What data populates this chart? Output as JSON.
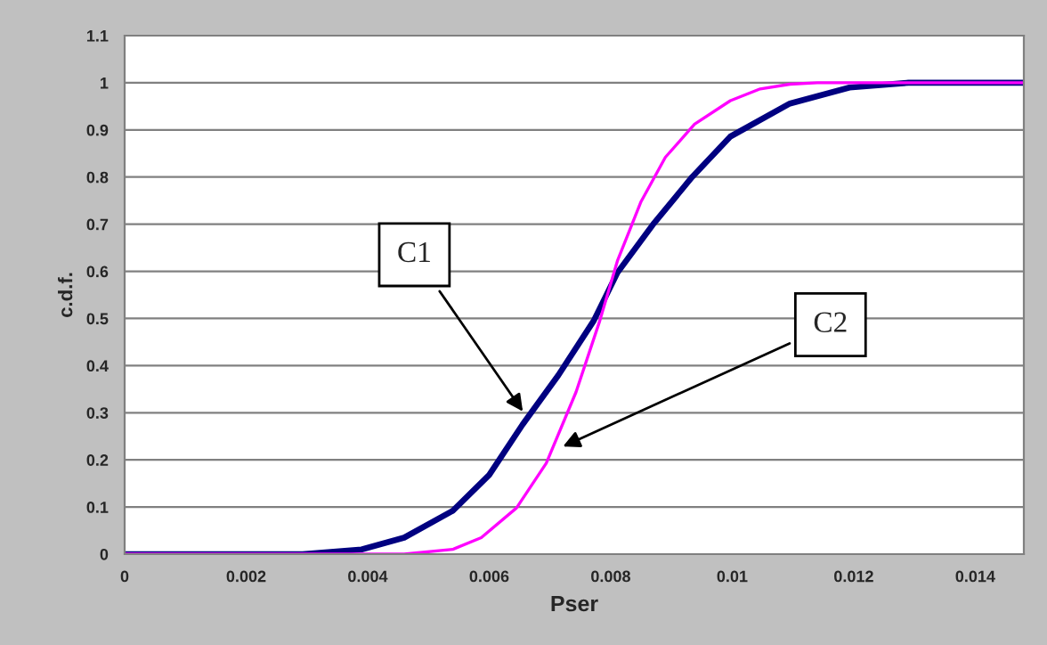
{
  "chart_data": {
    "type": "line",
    "xlabel": "Pser",
    "ylabel": "c.d.f.",
    "x": [
      0,
      0.00293,
      0.0039,
      0.0046,
      0.0054,
      0.006,
      0.00655,
      0.00714,
      0.00772,
      0.00811,
      0.0087,
      0.00934,
      0.00997,
      0.01095,
      0.01193,
      0.0129,
      0.0148
    ],
    "series": [
      {
        "color": "#000080",
        "values": [
          0,
          0,
          0.01,
          0.035,
          0.092,
          0.168,
          0.275,
          0.38,
          0.495,
          0.597,
          0.7,
          0.8,
          0.886,
          0.956,
          0.99,
          1,
          1
        ]
      },
      {
        "color": "#ff00ff",
        "x": [
          0,
          0.0046,
          0.0054,
          0.00587,
          0.00645,
          0.00694,
          0.00743,
          0.00782,
          0.00811,
          0.0085,
          0.0089,
          0.00938,
          0.00997,
          0.01046,
          0.01095,
          0.0114,
          0.0148
        ],
        "values": [
          0,
          0,
          0.01,
          0.035,
          0.098,
          0.193,
          0.344,
          0.495,
          0.622,
          0.748,
          0.842,
          0.912,
          0.962,
          0.987,
          0.997,
          1,
          1
        ]
      }
    ],
    "annotations": [
      {
        "text": "C1",
        "x": 0.0066,
        "y": 0.294
      },
      {
        "text": "C2",
        "x": 0.00714,
        "y": 0.224
      }
    ],
    "xlim": [
      0,
      0.0148
    ],
    "ylim": [
      0,
      1.1
    ],
    "xticks": [
      0,
      0.002,
      0.004,
      0.006,
      0.008,
      0.01,
      0.012,
      0.014
    ],
    "yticks": [
      0,
      0.1,
      0.2,
      0.3,
      0.4,
      0.5,
      0.6,
      0.7,
      0.8,
      0.9,
      1,
      1.1
    ],
    "grid": "y",
    "marker": "none",
    "line_style": "solid"
  }
}
